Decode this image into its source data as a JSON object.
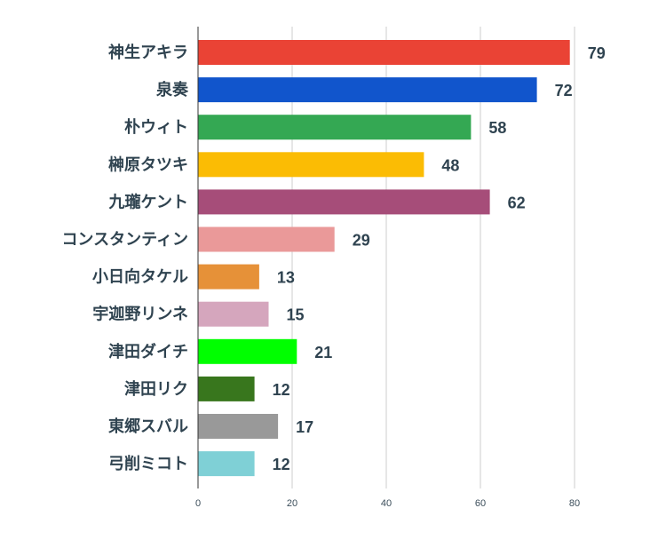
{
  "chart_data": {
    "type": "bar",
    "orientation": "horizontal",
    "categories": [
      "神生アキラ",
      "泉奏",
      "朴ウィト",
      "榊原タツキ",
      "九瓏ケント",
      "コンスタンティン",
      "小日向タケル",
      "宇迦野リンネ",
      "津田ダイチ",
      "津田リク",
      "東郷スバル",
      "弓削ミコト"
    ],
    "values": [
      79,
      72,
      58,
      48,
      62,
      29,
      13,
      15,
      21,
      12,
      17,
      12
    ],
    "colors": [
      "#ea4335",
      "#1155cc",
      "#34a853",
      "#fbbc04",
      "#a64d79",
      "#ea9999",
      "#e69138",
      "#d5a6bd",
      "#00ff00",
      "#38761d",
      "#999999",
      "#7fd0d6"
    ],
    "xlim": [
      0,
      80
    ],
    "xticks": [
      "0",
      "20",
      "40",
      "60",
      "80"
    ],
    "grid": true,
    "title": "",
    "xlabel": "",
    "ylabel": ""
  }
}
